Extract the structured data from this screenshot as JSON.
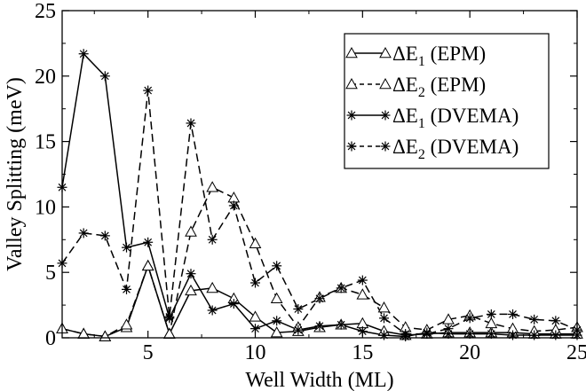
{
  "chart_data": {
    "type": "line",
    "title": "",
    "xlabel": "Well Width (ML)",
    "ylabel": "Valley Splitting (meV)",
    "xlim": [
      1,
      25
    ],
    "ylim": [
      0,
      25
    ],
    "xticks": [
      5,
      10,
      15,
      20,
      25
    ],
    "yticks": [
      0,
      5,
      10,
      15,
      20,
      25
    ],
    "grid": false,
    "legend_position": "top-right",
    "x": [
      1,
      2,
      3,
      4,
      5,
      6,
      7,
      8,
      9,
      10,
      11,
      12,
      13,
      14,
      15,
      16,
      17,
      18,
      19,
      20,
      21,
      22,
      23,
      24,
      25
    ],
    "series": [
      {
        "name": "ΔE1 (EPM)",
        "legend_main": "ΔE",
        "legend_sub": "1",
        "legend_suffix": " (EPM)",
        "marker": "triangle",
        "line": "solid",
        "values": [
          0.7,
          0.3,
          0.1,
          0.8,
          5.5,
          0.3,
          3.6,
          3.8,
          3.0,
          1.6,
          0.4,
          0.5,
          0.8,
          1.0,
          1.1,
          0.5,
          0.2,
          0.3,
          0.4,
          0.4,
          0.4,
          0.4,
          0.3,
          0.3,
          0.3
        ]
      },
      {
        "name": "ΔE2 (EPM)",
        "legend_main": "ΔE",
        "legend_sub": "2",
        "legend_suffix": " (EPM)",
        "marker": "triangle",
        "line": "dashed",
        "values": [
          0.7,
          0.3,
          0.1,
          1.0,
          5.5,
          0.3,
          8.1,
          11.5,
          10.7,
          7.2,
          3.0,
          0.8,
          3.1,
          3.8,
          3.3,
          2.3,
          0.8,
          0.6,
          1.4,
          1.7,
          1.1,
          0.7,
          0.5,
          0.6,
          0.8
        ]
      },
      {
        "name": "ΔE1 (DVEMA)",
        "legend_main": "ΔE",
        "legend_sub": "1",
        "legend_suffix": " (DVEMA)",
        "marker": "star",
        "line": "solid",
        "values": [
          11.5,
          21.7,
          20.0,
          6.9,
          7.3,
          1.5,
          4.9,
          2.1,
          2.6,
          0.7,
          1.3,
          0.6,
          0.9,
          1.0,
          0.5,
          0.2,
          0.1,
          0.4,
          0.3,
          0.3,
          0.3,
          0.2,
          0.2,
          0.2,
          0.2
        ]
      },
      {
        "name": "ΔE2 (DVEMA)",
        "legend_main": "ΔE",
        "legend_sub": "2",
        "legend_suffix": " (DVEMA)",
        "marker": "star",
        "line": "dashed",
        "values": [
          5.7,
          8.0,
          7.8,
          3.7,
          18.9,
          1.6,
          16.4,
          7.5,
          10.1,
          4.2,
          5.5,
          2.2,
          3.0,
          3.8,
          4.4,
          1.5,
          0.3,
          0.3,
          0.7,
          1.5,
          1.8,
          1.8,
          1.4,
          1.3,
          0.6
        ]
      }
    ]
  }
}
